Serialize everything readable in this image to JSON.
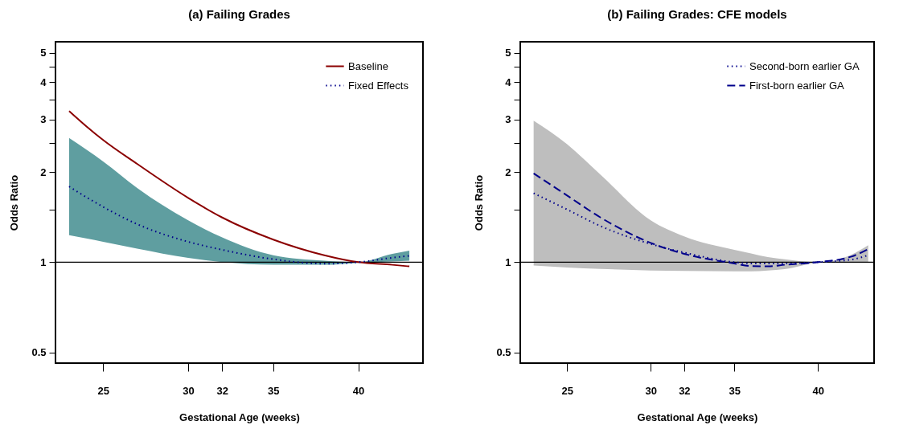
{
  "chart_data": [
    {
      "type": "line",
      "title": "(a) Failing Grades",
      "xlabel": "Gestational Age (weeks)",
      "ylabel": "Odds Ratio",
      "log": "y",
      "grid": false,
      "legend": "top right",
      "marker": "none",
      "xlim": [
        22.2,
        43.8
      ],
      "xticks": [
        25,
        30,
        32,
        35,
        40
      ],
      "ylim": [
        0.46,
        5.45
      ],
      "yticks": [
        0.5,
        1,
        {
          "value": 1.5,
          "label": null
        },
        2,
        {
          "value": 2.5,
          "label": null
        },
        3,
        {
          "value": 3.5,
          "label": null
        },
        4,
        {
          "value": 4.5,
          "label": null
        },
        5
      ],
      "x": [
        23,
        24,
        25,
        27,
        30,
        32,
        35,
        38,
        40,
        42,
        43
      ],
      "series": [
        {
          "type": "area",
          "color": "#5f9ea0",
          "values": [
            null,
            null,
            null,
            null,
            null,
            null,
            null,
            null,
            null,
            null,
            null
          ],
          "lower": [
            1.23,
            1.2,
            1.17,
            1.11,
            1.033,
            1.0,
            0.98,
            0.98,
            0.995,
            1.006,
            1.012
          ],
          "upper": [
            2.6,
            2.38,
            2.17,
            1.77,
            1.38,
            1.21,
            1.055,
            1.012,
            1.0,
            1.066,
            1.093
          ]
        },
        {
          "name": "Baseline",
          "color": "#8b0000",
          "line_style": "solid",
          "values": [
            3.2,
            2.85,
            2.56,
            2.13,
            1.64,
            1.41,
            1.19,
            1.055,
            1.0,
            0.98,
            0.968
          ]
        },
        {
          "name": "Fixed Effects",
          "color": "#00008b",
          "line_style": "dotted",
          "values": [
            1.79,
            1.65,
            1.53,
            1.34,
            1.17,
            1.1,
            1.023,
            0.988,
            1.0,
            1.035,
            1.05
          ]
        }
      ],
      "ref_lines": [
        {
          "axis": "y",
          "value": 1,
          "color": "#000000",
          "line_style": "solid"
        }
      ]
    },
    {
      "type": "line",
      "title": "(b) Failing Grades: CFE models",
      "xlabel": "Gestational Age (weeks)",
      "ylabel": "Odds Ratio",
      "log": "y",
      "grid": false,
      "legend": "top right",
      "marker": "none",
      "xlim": [
        22.2,
        43.35
      ],
      "xticks": [
        25,
        30,
        32,
        35,
        40
      ],
      "ylim": [
        0.46,
        5.45
      ],
      "yticks": [
        0.5,
        1,
        {
          "value": 1.5,
          "label": null
        },
        2,
        {
          "value": 2.5,
          "label": null
        },
        3,
        {
          "value": 3.5,
          "label": null
        },
        4,
        {
          "value": 4.5,
          "label": null
        },
        5
      ],
      "x": [
        23,
        25,
        27,
        30,
        32,
        35,
        36,
        37,
        38,
        40,
        42,
        43
      ],
      "series": [
        {
          "type": "area",
          "color": "#bebebe",
          "values": [
            null,
            null,
            null,
            null,
            null,
            null,
            null,
            null,
            null,
            null,
            null,
            null
          ],
          "lower": [
            0.975,
            0.96,
            0.95,
            0.938,
            0.935,
            0.932,
            0.932,
            0.938,
            0.948,
            0.995,
            1.0,
            1.0
          ],
          "upper": [
            2.97,
            2.48,
            1.96,
            1.38,
            1.22,
            1.1,
            1.07,
            1.04,
            1.023,
            1.0,
            1.06,
            1.14
          ]
        },
        {
          "name": "Second-born earlier GA",
          "color": "#00008b",
          "line_style": "dotted",
          "values": [
            1.7,
            1.5,
            1.32,
            1.15,
            1.077,
            1.0,
            0.99,
            0.99,
            0.99,
            1.0,
            1.02,
            1.055
          ]
        },
        {
          "name": "First-born earlier GA",
          "color": "#00008b",
          "line_style": "dashed",
          "values": [
            1.98,
            1.67,
            1.41,
            1.16,
            1.066,
            0.99,
            0.97,
            0.968,
            0.98,
            1.0,
            1.044,
            1.106
          ]
        }
      ],
      "ref_lines": [
        {
          "axis": "y",
          "value": 1,
          "color": "#000000",
          "line_style": "solid"
        }
      ]
    }
  ]
}
